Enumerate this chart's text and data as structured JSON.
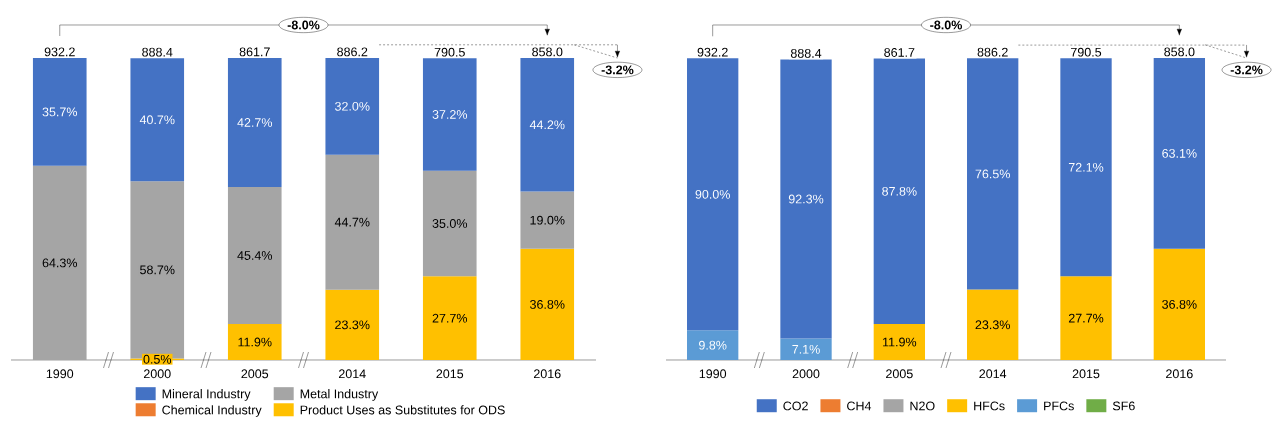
{
  "chart_data": [
    {
      "type": "bar",
      "stacked": true,
      "legend": "bottom",
      "categories": [
        "1990",
        "2000",
        "2005",
        "2014",
        "2015",
        "2016"
      ],
      "series": [
        {
          "name": "Product Uses as Substitutes for ODS",
          "color": "#ffc000",
          "values": [
            null,
            0.5,
            11.9,
            23.3,
            27.7,
            36.8
          ],
          "value_labels": [
            null,
            "0.5%",
            "11.9%",
            "23.3%",
            "27.7%",
            "36.8%"
          ]
        },
        {
          "name": "Chemical Industry",
          "color": "#ed7d31",
          "values": [
            null,
            null,
            null,
            null,
            null,
            null
          ]
        },
        {
          "name": "Metal Industry",
          "color": "#a5a5a5",
          "values": [
            64.3,
            58.7,
            45.4,
            44.7,
            35.0,
            19.0
          ],
          "value_labels": [
            "64.3%",
            "58.7%",
            "45.4%",
            "44.7%",
            "35.0%",
            "19.0%"
          ]
        },
        {
          "name": "Mineral Industry",
          "color": "#4472c4",
          "values": [
            35.7,
            40.7,
            42.7,
            32.0,
            37.2,
            44.2
          ],
          "value_labels": [
            "35.7%",
            "40.7%",
            "42.7%",
            "32.0%",
            "37.2%",
            "44.2%"
          ]
        }
      ],
      "annotations": [
        "-8.0%",
        "-3.2%",
        "932.2",
        "888.4",
        "861.7",
        "886.2",
        "790.5",
        "858.0"
      ]
    },
    {
      "type": "bar",
      "stacked": true,
      "legend": "bottom",
      "categories": [
        "1990",
        "2000",
        "2005",
        "2014",
        "2015",
        "2016"
      ],
      "series": [
        {
          "name": "SF6",
          "color": "#70ad47",
          "values": [
            null,
            null,
            null,
            null,
            null,
            null
          ]
        },
        {
          "name": "PFCs",
          "color": "#5b9bd5",
          "values": [
            9.8,
            7.1,
            null,
            null,
            null,
            null
          ],
          "value_labels": [
            "9.8%",
            "7.1%",
            null,
            null,
            null,
            null
          ]
        },
        {
          "name": "HFCs",
          "color": "#ffc000",
          "values": [
            null,
            null,
            11.9,
            23.3,
            27.7,
            36.8
          ],
          "value_labels": [
            null,
            null,
            "11.9%",
            "23.3%",
            "27.7%",
            "36.8%"
          ]
        },
        {
          "name": "N2O",
          "color": "#a5a5a5",
          "values": [
            null,
            null,
            null,
            null,
            null,
            null
          ]
        },
        {
          "name": "CH4",
          "color": "#ed7d31",
          "values": [
            null,
            null,
            null,
            null,
            null,
            null
          ]
        },
        {
          "name": "CO2",
          "color": "#4472c4",
          "values": [
            90.0,
            92.3,
            87.8,
            76.5,
            72.1,
            63.1
          ],
          "value_labels": [
            "90.0%",
            "92.3%",
            "87.8%",
            "76.5%",
            "72.1%",
            "63.1%"
          ]
        }
      ],
      "annotations": [
        "-8.0%",
        "-3.2%",
        "932.2",
        "888.4",
        "861.7",
        "886.2",
        "790.5",
        "858.0"
      ]
    }
  ]
}
